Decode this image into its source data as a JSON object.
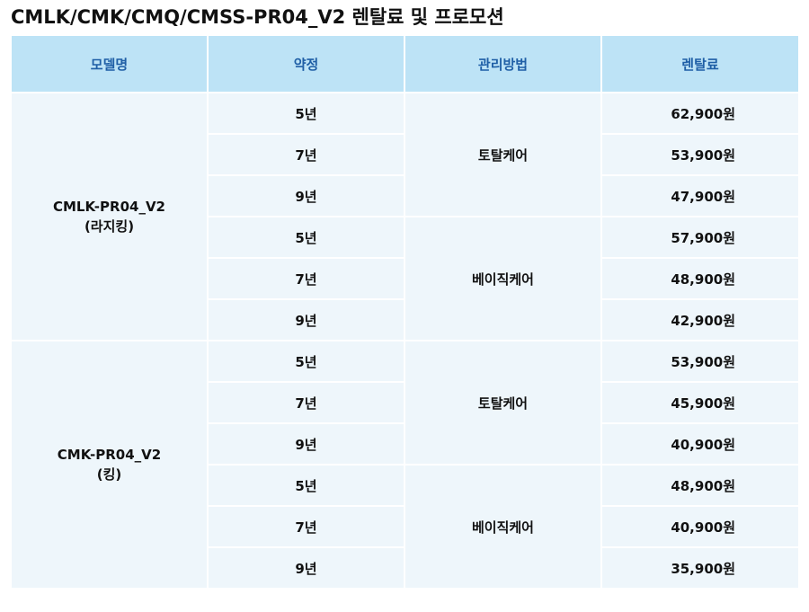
{
  "title": "CMLK/CMK/CMQ/CMSS-PR04_V2 렌탈료 및 프로모션",
  "headers": {
    "model": "모델명",
    "term": "약정",
    "management": "관리방법",
    "fee": "렌탈료"
  },
  "models": [
    {
      "name": "CMLK-PR04_V2",
      "size": "(라지킹)",
      "plans": [
        {
          "management": "토탈케어",
          "rows": [
            {
              "term": "5년",
              "fee": "62,900원"
            },
            {
              "term": "7년",
              "fee": "53,900원"
            },
            {
              "term": "9년",
              "fee": "47,900원"
            }
          ]
        },
        {
          "management": "베이직케어",
          "rows": [
            {
              "term": "5년",
              "fee": "57,900원"
            },
            {
              "term": "7년",
              "fee": "48,900원"
            },
            {
              "term": "9년",
              "fee": "42,900원"
            }
          ]
        }
      ]
    },
    {
      "name": "CMK-PR04_V2",
      "size": "(킹)",
      "plans": [
        {
          "management": "토탈케어",
          "rows": [
            {
              "term": "5년",
              "fee": "53,900원"
            },
            {
              "term": "7년",
              "fee": "45,900원"
            },
            {
              "term": "9년",
              "fee": "40,900원"
            }
          ]
        },
        {
          "management": "베이직케어",
          "rows": [
            {
              "term": "5년",
              "fee": "48,900원"
            },
            {
              "term": "7년",
              "fee": "40,900원"
            },
            {
              "term": "9년",
              "fee": "35,900원"
            }
          ]
        }
      ]
    }
  ]
}
